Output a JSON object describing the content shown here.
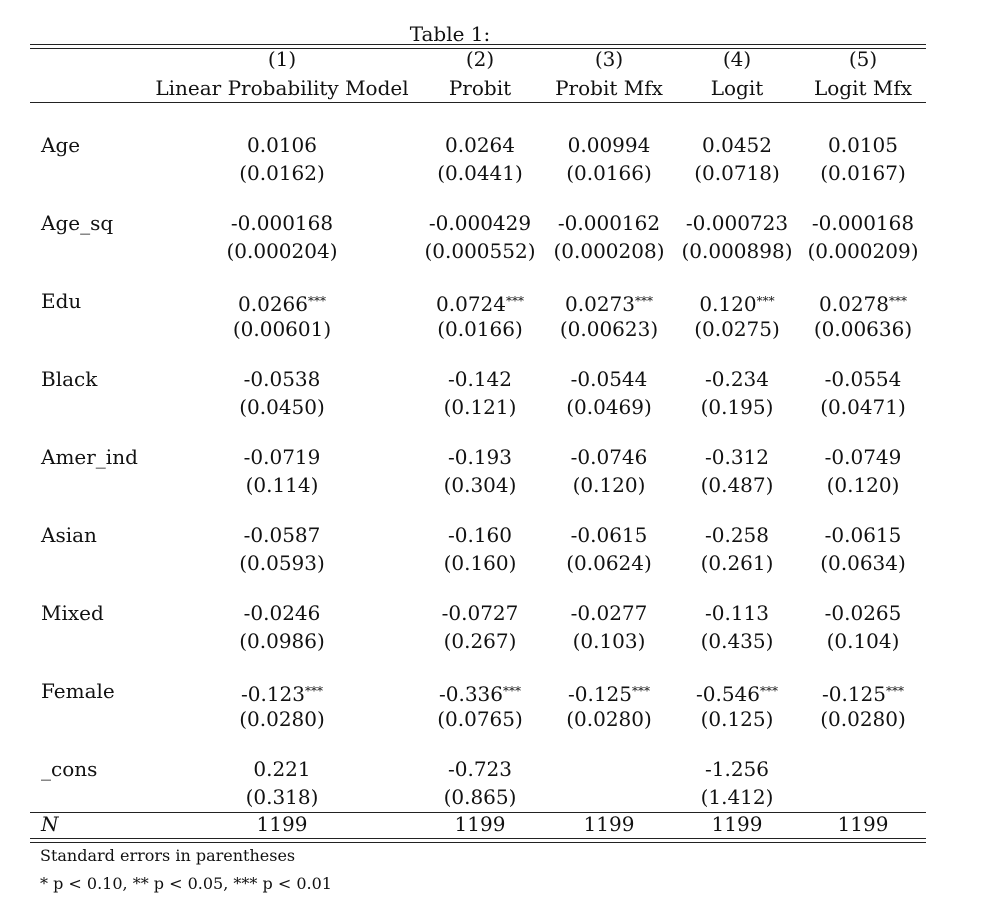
{
  "caption": "Table 1:",
  "columns": [
    {
      "num": "(1)",
      "label": "Linear Probability Model"
    },
    {
      "num": "(2)",
      "label": "Probit"
    },
    {
      "num": "(3)",
      "label": "Probit Mfx"
    },
    {
      "num": "(4)",
      "label": "Logit"
    },
    {
      "num": "(5)",
      "label": "Logit Mfx"
    }
  ],
  "rows": [
    {
      "label": "Age",
      "coef": [
        "0.0106",
        "0.0264",
        "0.00994",
        "0.0452",
        "0.0105"
      ],
      "stars": [
        "",
        "",
        "",
        "",
        ""
      ],
      "se": [
        "(0.0162)",
        "(0.0441)",
        "(0.0166)",
        "(0.0718)",
        "(0.0167)"
      ]
    },
    {
      "label": "Age_sq",
      "coef": [
        "-0.000168",
        "-0.000429",
        "-0.000162",
        "-0.000723",
        "-0.000168"
      ],
      "stars": [
        "",
        "",
        "",
        "",
        ""
      ],
      "se": [
        "(0.000204)",
        "(0.000552)",
        "(0.000208)",
        "(0.000898)",
        "(0.000209)"
      ]
    },
    {
      "label": "Edu",
      "coef": [
        "0.0266",
        "0.0724",
        "0.0273",
        "0.120",
        "0.0278"
      ],
      "stars": [
        "***",
        "***",
        "***",
        "***",
        "***"
      ],
      "se": [
        "(0.00601)",
        "(0.0166)",
        "(0.00623)",
        "(0.0275)",
        "(0.00636)"
      ]
    },
    {
      "label": "Black",
      "coef": [
        "-0.0538",
        "-0.142",
        "-0.0544",
        "-0.234",
        "-0.0554"
      ],
      "stars": [
        "",
        "",
        "",
        "",
        ""
      ],
      "se": [
        "(0.0450)",
        "(0.121)",
        "(0.0469)",
        "(0.195)",
        "(0.0471)"
      ]
    },
    {
      "label": "Amer_ind",
      "coef": [
        "-0.0719",
        "-0.193",
        "-0.0746",
        "-0.312",
        "-0.0749"
      ],
      "stars": [
        "",
        "",
        "",
        "",
        ""
      ],
      "se": [
        "(0.114)",
        "(0.304)",
        "(0.120)",
        "(0.487)",
        "(0.120)"
      ]
    },
    {
      "label": "Asian",
      "coef": [
        "-0.0587",
        "-0.160",
        "-0.0615",
        "-0.258",
        "-0.0615"
      ],
      "stars": [
        "",
        "",
        "",
        "",
        ""
      ],
      "se": [
        "(0.0593)",
        "(0.160)",
        "(0.0624)",
        "(0.261)",
        "(0.0634)"
      ]
    },
    {
      "label": "Mixed",
      "coef": [
        "-0.0246",
        "-0.0727",
        "-0.0277",
        "-0.113",
        "-0.0265"
      ],
      "stars": [
        "",
        "",
        "",
        "",
        ""
      ],
      "se": [
        "(0.0986)",
        "(0.267)",
        "(0.103)",
        "(0.435)",
        "(0.104)"
      ]
    },
    {
      "label": "Female",
      "coef": [
        "-0.123",
        "-0.336",
        "-0.125",
        "-0.546",
        "-0.125"
      ],
      "stars": [
        "***",
        "***",
        "***",
        "***",
        "***"
      ],
      "se": [
        "(0.0280)",
        "(0.0765)",
        "(0.0280)",
        "(0.125)",
        "(0.0280)"
      ]
    },
    {
      "label": "_cons",
      "coef": [
        "0.221",
        "-0.723",
        "",
        "-1.256",
        ""
      ],
      "stars": [
        "",
        "",
        "",
        "",
        ""
      ],
      "se": [
        "(0.318)",
        "(0.865)",
        "",
        "(1.412)",
        ""
      ]
    }
  ],
  "n_row": {
    "label": "N",
    "values": [
      "1199",
      "1199",
      "1199",
      "1199",
      "1199"
    ]
  },
  "notes": {
    "line1": "Standard errors in parentheses",
    "line2": "* p < 0.10, ** p < 0.05, *** p < 0.01"
  }
}
